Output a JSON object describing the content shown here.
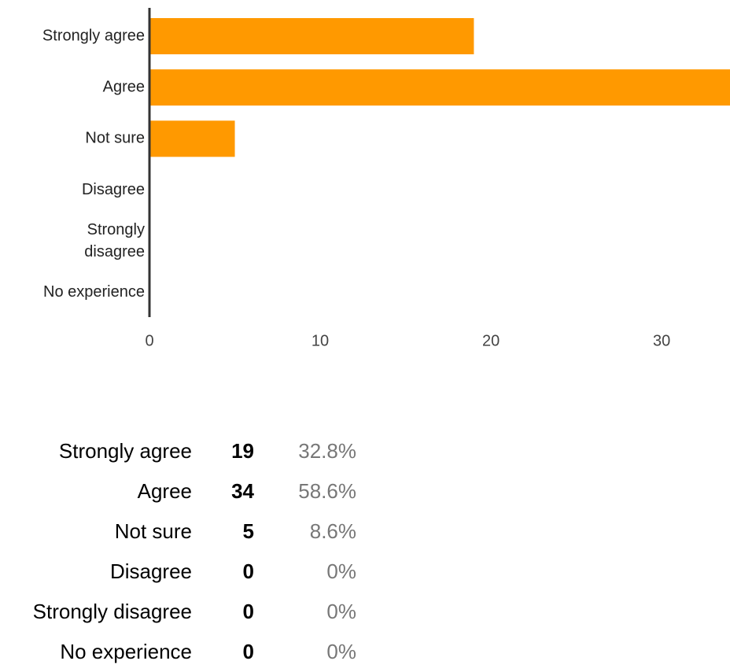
{
  "chart_data": {
    "type": "bar",
    "orientation": "horizontal",
    "categories": [
      [
        "Strongly agree"
      ],
      [
        "Agree"
      ],
      [
        "Not sure"
      ],
      [
        "Disagree"
      ],
      [
        "Strongly",
        "disagree"
      ],
      [
        "No experience"
      ]
    ],
    "values": [
      19,
      34,
      5,
      0,
      0,
      0
    ],
    "xlim": [
      0,
      34
    ],
    "xticks": [
      0,
      10,
      20,
      30
    ],
    "bar_color": "#ff9900",
    "axis_color": "#333333",
    "grid": false,
    "legend": "none"
  },
  "summary": {
    "rows": [
      {
        "label": "Strongly agree",
        "count": "19",
        "percent": "32.8%"
      },
      {
        "label": "Agree",
        "count": "34",
        "percent": "58.6%"
      },
      {
        "label": "Not sure",
        "count": "5",
        "percent": "8.6%"
      },
      {
        "label": "Disagree",
        "count": "0",
        "percent": "0%"
      },
      {
        "label": "Strongly disagree",
        "count": "0",
        "percent": "0%"
      },
      {
        "label": "No experience",
        "count": "0",
        "percent": "0%"
      }
    ]
  }
}
